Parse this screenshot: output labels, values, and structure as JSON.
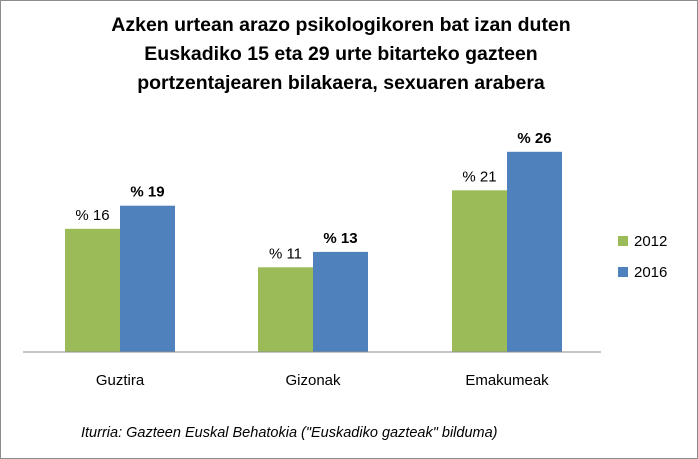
{
  "chart_data": {
    "type": "bar",
    "title_lines": [
      "Azken urtean arazo psikologikoren bat izan duten",
      "Euskadiko 15 eta 29 urte bitarteko gazteen",
      "portzentajearen bilakaera, sexuaren arabera"
    ],
    "categories": [
      "Guztira",
      "Gizonak",
      "Emakumeak"
    ],
    "series": [
      {
        "name": "2012",
        "values": [
          16,
          11,
          21
        ],
        "color": "#9bbb59",
        "labels": [
          "% 16",
          "% 11",
          "% 21"
        ],
        "label_bold": false
      },
      {
        "name": "2016",
        "values": [
          19,
          13,
          26
        ],
        "color": "#4f81bd",
        "labels": [
          "% 19",
          "% 13",
          "% 26"
        ],
        "label_bold": true
      }
    ],
    "ylim": [
      0,
      30
    ],
    "xlabel": "",
    "ylabel": "",
    "grid": false,
    "legend_position": "right"
  },
  "source_text": "Iturria: Gazteen Euskal Behatokia (\"Euskadiko gazteak\" bilduma)"
}
